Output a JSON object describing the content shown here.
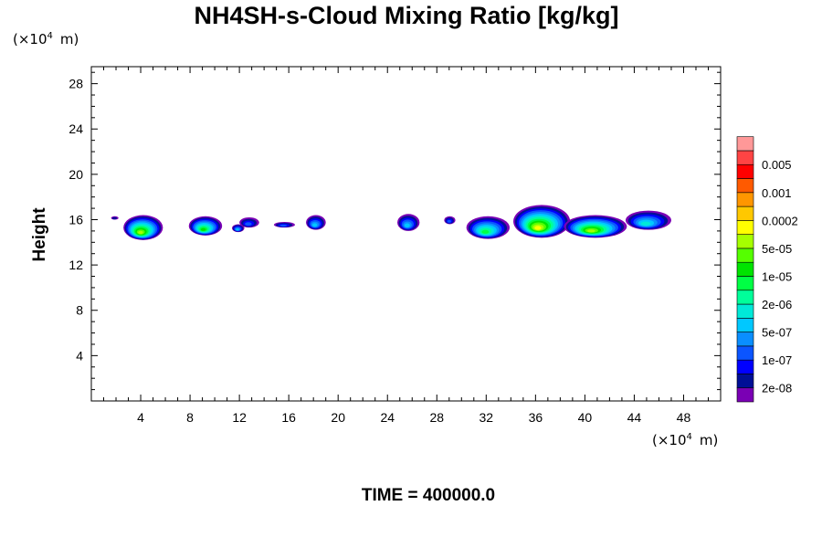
{
  "chart_data": {
    "type": "heatmap",
    "title": "NH4SH-s-Cloud Mixing Ratio [kg/kg]",
    "ylabel": "Height",
    "x_unit_prefix": "(×10",
    "unit_exponent": "4",
    "unit_suffix": "m)",
    "y_unit_prefix": "(×10",
    "x_unit_suffix": "m)",
    "xlim": [
      0,
      51
    ],
    "ylim": [
      0,
      29.5
    ],
    "x_ticks": [
      4,
      8,
      12,
      16,
      20,
      24,
      28,
      32,
      36,
      40,
      44,
      48
    ],
    "y_ticks": [
      4,
      8,
      12,
      16,
      20,
      24,
      28
    ],
    "x_tick_labels": [
      "4",
      "8",
      "12",
      "16",
      "20",
      "24",
      "28",
      "32",
      "36",
      "40",
      "44",
      "48"
    ],
    "y_tick_labels": [
      "4",
      "8",
      "12",
      "16",
      "20",
      "24",
      "28"
    ],
    "colorbar": {
      "colors": [
        "#7a00b4",
        "#000f96",
        "#0000ff",
        "#0b55ff",
        "#0a8eff",
        "#00c8ff",
        "#00e9d8",
        "#00ff9a",
        "#00ff44",
        "#00e400",
        "#55ff00",
        "#a6ff00",
        "#ffff00",
        "#ffc800",
        "#ff9600",
        "#ff5a00",
        "#ff0000",
        "#ff4444",
        "#ff9898"
      ],
      "labels": [
        "2e-08",
        "1e-07",
        "5e-07",
        "2e-06",
        "1e-05",
        "5e-05",
        "0.0002",
        "0.001",
        "0.005"
      ]
    },
    "clouds": [
      {
        "x": [
          2.6,
          5.8
        ],
        "top": 16.4,
        "bottom": 14.2,
        "peak": 11
      },
      {
        "x": [
          1.6,
          2.2
        ],
        "top": 16.3,
        "bottom": 16.0,
        "peak": 1
      },
      {
        "x": [
          7.9,
          10.6
        ],
        "top": 16.3,
        "bottom": 14.6,
        "peak": 9
      },
      {
        "x": [
          11.4,
          12.4
        ],
        "top": 15.6,
        "bottom": 14.9,
        "peak": 5
      },
      {
        "x": [
          12.0,
          13.6
        ],
        "top": 16.2,
        "bottom": 15.3,
        "peak": 3
      },
      {
        "x": [
          14.8,
          16.5
        ],
        "top": 15.8,
        "bottom": 15.3,
        "peak": 3
      },
      {
        "x": [
          17.4,
          19.0
        ],
        "top": 16.4,
        "bottom": 15.1,
        "peak": 5
      },
      {
        "x": [
          24.8,
          26.6
        ],
        "top": 16.5,
        "bottom": 15.0,
        "peak": 5
      },
      {
        "x": [
          28.6,
          29.5
        ],
        "top": 16.3,
        "bottom": 15.6,
        "peak": 3
      },
      {
        "x": [
          30.4,
          33.9
        ],
        "top": 16.3,
        "bottom": 14.3,
        "peak": 8
      },
      {
        "x": [
          34.2,
          38.8
        ],
        "top": 17.3,
        "bottom": 14.4,
        "peak": 12
      },
      {
        "x": [
          38.3,
          43.4
        ],
        "top": 16.4,
        "bottom": 14.4,
        "peak": 11
      },
      {
        "x": [
          43.3,
          47.0
        ],
        "top": 16.8,
        "bottom": 15.1,
        "peak": 6
      }
    ]
  },
  "time_label": "TIME = 400000.0"
}
